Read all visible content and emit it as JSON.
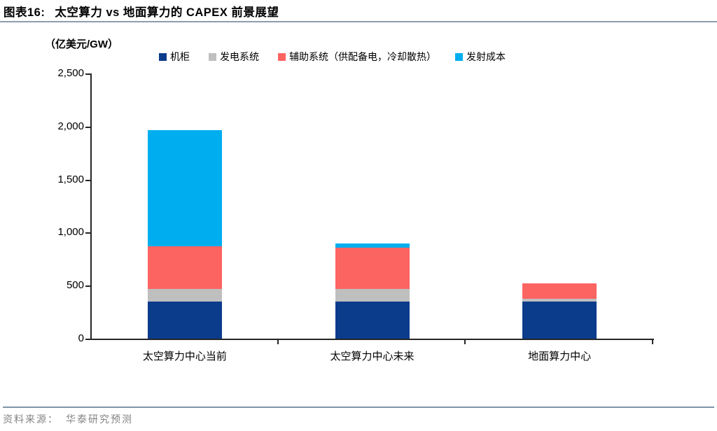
{
  "header": {
    "title_prefix": "图表16:",
    "title": "太空算力 vs 地面算力的 CAPEX 前景展望"
  },
  "unit_label": "（亿美元/GW）",
  "footer": {
    "source_label": "资料来源：",
    "source_value": "华泰研究预测"
  },
  "chart_data": {
    "type": "bar",
    "stacked": true,
    "title": "太空算力 vs 地面算力的 CAPEX 前景展望",
    "ylabel_unit": "亿美元/GW",
    "legend_position": "top",
    "grid": false,
    "categories": [
      "太空算力中心当前",
      "太空算力中心未来",
      "地面算力中心"
    ],
    "series": [
      {
        "name": "机柜",
        "color": "#0b3c8c",
        "values": [
          350,
          350,
          350
        ]
      },
      {
        "name": "发电系统",
        "color": "#bfbfbf",
        "values": [
          120,
          120,
          25
        ]
      },
      {
        "name": "辅助系统（供配备电，冷却散热）",
        "color": "#fc6462",
        "values": [
          400,
          390,
          145
        ]
      },
      {
        "name": "发射成本",
        "color": "#00aeef",
        "values": [
          1095,
          40,
          0
        ]
      }
    ],
    "ylim": [
      0,
      2500
    ],
    "y_ticks": [
      {
        "value": 0,
        "label": "0"
      },
      {
        "value": 500,
        "label": "500"
      },
      {
        "value": 1000,
        "label": "1,000"
      },
      {
        "value": 1500,
        "label": "1,500"
      },
      {
        "value": 2000,
        "label": "2,000"
      },
      {
        "value": 2500,
        "label": "2,500"
      }
    ]
  }
}
